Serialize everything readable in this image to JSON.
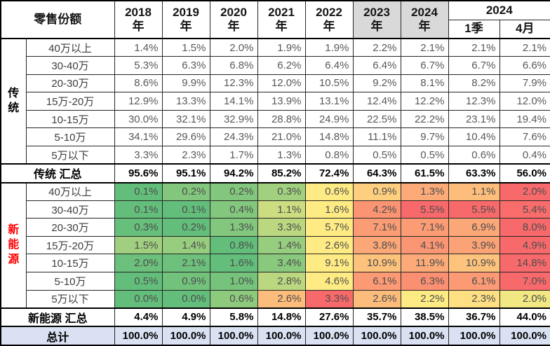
{
  "chart_data": {
    "type": "table",
    "title": "零售份额",
    "corner_label": "零售份额",
    "year_headers": [
      "2018\n年",
      "2019\n年",
      "2020\n年",
      "2021\n年",
      "2022\n年",
      "2023\n年",
      "2024\n年"
    ],
    "group_header": {
      "label": "2024",
      "subs": [
        "1季",
        "4月"
      ]
    },
    "gray_col_indices": [
      5,
      6
    ],
    "sections": [
      {
        "name": "传\n统",
        "name_plain": "传统",
        "name_color": "#000000",
        "color_scale": false,
        "rows": [
          {
            "label": "40万以上",
            "values": [
              "1.4%",
              "1.5%",
              "2.0%",
              "1.9%",
              "1.9%",
              "2.2%",
              "2.1%",
              "2.1%",
              "2.1%"
            ]
          },
          {
            "label": "30-40万",
            "values": [
              "5.3%",
              "6.3%",
              "6.8%",
              "6.2%",
              "6.4%",
              "6.4%",
              "6.7%",
              "6.7%",
              "6.6%"
            ]
          },
          {
            "label": "20-30万",
            "values": [
              "8.6%",
              "9.9%",
              "12.3%",
              "12.0%",
              "10.5%",
              "9.2%",
              "8.1%",
              "8.2%",
              "7.9%"
            ]
          },
          {
            "label": "15万-20万",
            "values": [
              "12.9%",
              "13.3%",
              "14.1%",
              "13.9%",
              "13.1%",
              "12.4%",
              "12.2%",
              "12.3%",
              "12.0%"
            ]
          },
          {
            "label": "10-15万",
            "values": [
              "30.0%",
              "32.1%",
              "32.9%",
              "28.8%",
              "24.9%",
              "22.5%",
              "22.2%",
              "23.1%",
              "19.4%"
            ]
          },
          {
            "label": "5-10万",
            "values": [
              "34.1%",
              "29.6%",
              "24.3%",
              "21.0%",
              "14.8%",
              "11.1%",
              "9.7%",
              "10.4%",
              "7.6%"
            ]
          },
          {
            "label": "5万以下",
            "values": [
              "3.3%",
              "2.3%",
              "1.7%",
              "1.3%",
              "0.8%",
              "0.5%",
              "0.5%",
              "0.6%",
              "0.4%"
            ]
          }
        ],
        "summary": {
          "label": "传统 汇总",
          "values": [
            "95.6%",
            "95.1%",
            "94.2%",
            "85.2%",
            "72.4%",
            "64.3%",
            "61.5%",
            "63.3%",
            "56.0%"
          ]
        }
      },
      {
        "name": "新\n能\n源",
        "name_plain": "新能源",
        "name_color": "#FF0000",
        "color_scale": true,
        "rows": [
          {
            "label": "40万以上",
            "values": [
              "0.1%",
              "0.2%",
              "0.2%",
              "0.3%",
              "0.6%",
              "0.9%",
              "1.3%",
              "1.1%",
              "2.0%"
            ]
          },
          {
            "label": "30-40万",
            "values": [
              "0.1%",
              "0.1%",
              "0.4%",
              "1.1%",
              "1.6%",
              "4.2%",
              "5.5%",
              "5.5%",
              "5.4%"
            ]
          },
          {
            "label": "20-30万",
            "values": [
              "0.3%",
              "0.2%",
              "1.3%",
              "3.3%",
              "5.7%",
              "7.1%",
              "7.1%",
              "6.9%",
              "8.0%"
            ]
          },
          {
            "label": "15万-20万",
            "values": [
              "1.5%",
              "1.4%",
              "0.8%",
              "1.4%",
              "2.6%",
              "3.8%",
              "4.1%",
              "3.9%",
              "4.9%"
            ]
          },
          {
            "label": "10-15万",
            "values": [
              "2.0%",
              "2.1%",
              "1.6%",
              "3.4%",
              "9.1%",
              "10.9%",
              "11.9%",
              "10.9%",
              "14.8%"
            ]
          },
          {
            "label": "5-10万",
            "values": [
              "0.5%",
              "0.9%",
              "1.0%",
              "2.8%",
              "4.6%",
              "6.1%",
              "6.3%",
              "6.1%",
              "7.0%"
            ]
          },
          {
            "label": "5万以下",
            "values": [
              "0.0%",
              "0.0%",
              "0.6%",
              "2.6%",
              "3.3%",
              "2.6%",
              "2.2%",
              "2.3%",
              "2.0%"
            ]
          }
        ],
        "summary": {
          "label": "新能源 汇总",
          "values": [
            "4.4%",
            "4.9%",
            "5.8%",
            "14.8%",
            "27.6%",
            "35.7%",
            "38.5%",
            "36.7%",
            "44.0%"
          ]
        }
      }
    ],
    "total": {
      "label": "总计",
      "values": [
        "100.0%",
        "100.0%",
        "100.0%",
        "100.0%",
        "100.0%",
        "100.0%",
        "100.0%",
        "100.0%",
        "100.0%"
      ]
    },
    "colors": {
      "header_gray": "#D9D9D9",
      "total_blue": "#D9E1F2",
      "scale_min_green": "#63BE7B",
      "scale_mid_yellow": "#FFEB84",
      "scale_max_red": "#F8696B",
      "new_energy_label_red": "#FF0000"
    }
  }
}
